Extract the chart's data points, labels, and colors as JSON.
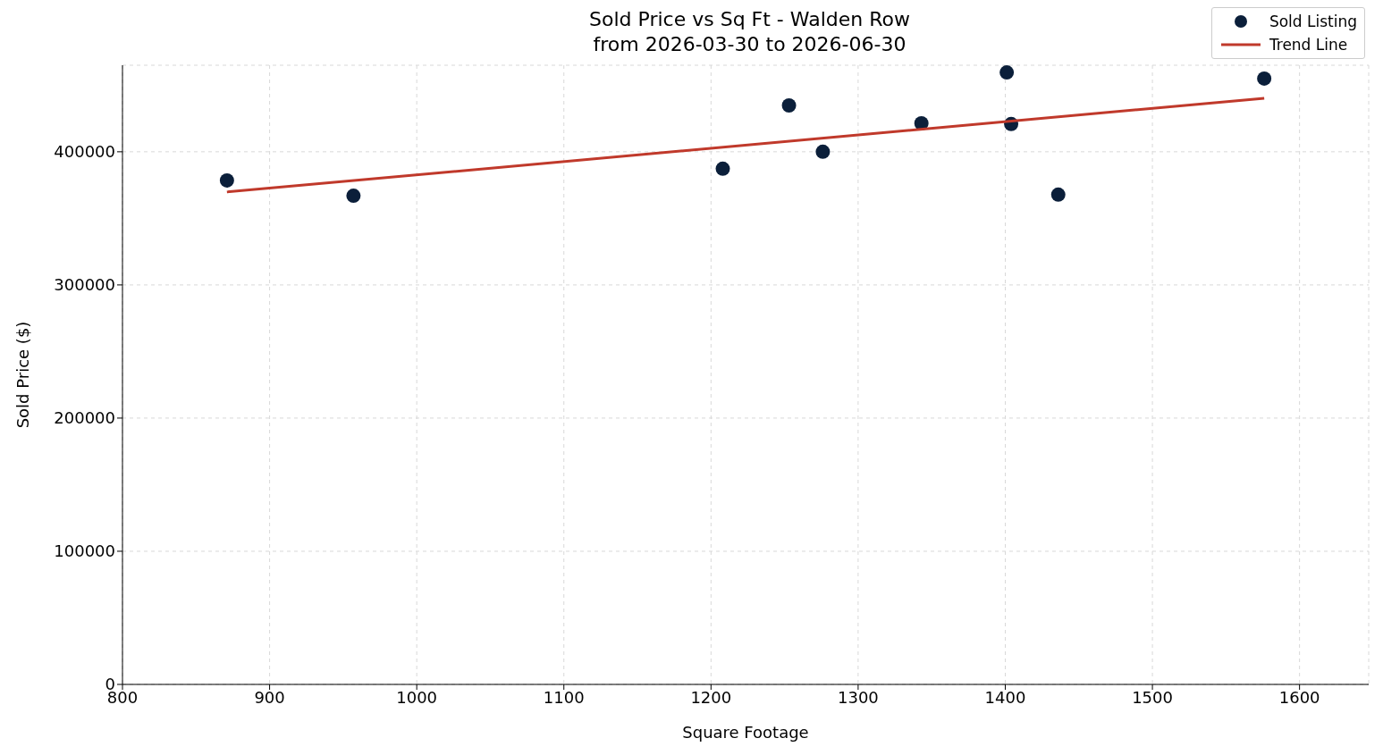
{
  "chart_data": {
    "type": "scatter",
    "title": "Sold Price vs Sq Ft - Walden Row",
    "subtitle": "from 2026-03-30 to 2026-06-30",
    "xlabel": "Square Footage",
    "ylabel": "Sold Price ($)",
    "xlim": [
      800,
      1647
    ],
    "xticks": [
      800,
      900,
      1000,
      1100,
      1200,
      1300,
      1400,
      1500,
      1600
    ],
    "ylim": [
      0,
      465000
    ],
    "yticks": [
      0,
      100000,
      200000,
      300000,
      400000
    ],
    "grid": true,
    "legend": "top right",
    "series": [
      {
        "name": "Sold Listing",
        "marker": "circle",
        "color": "#0b1f3a",
        "x": [
          871,
          957,
          1208,
          1253,
          1276,
          1343,
          1401,
          1404,
          1436,
          1576
        ],
        "values": [
          378500,
          367000,
          387300,
          434800,
          400000,
          421400,
          459600,
          420800,
          367800,
          455000
        ]
      },
      {
        "name": "Trend Line",
        "type": "line",
        "color": "#c0392b",
        "line_style": "solid",
        "x": [
          871,
          1576
        ],
        "values": [
          369800,
          440200
        ]
      }
    ]
  }
}
